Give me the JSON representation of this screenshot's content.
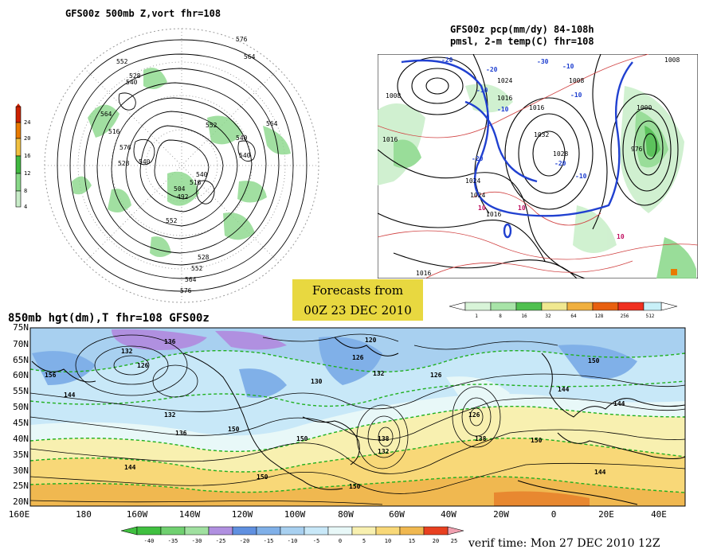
{
  "panel_500mb": {
    "title": "GFS00z  500mb Z,vort    fhr=108",
    "contour_labels": [
      "576",
      "564",
      "552",
      "540",
      "528",
      "516",
      "564",
      "552",
      "528",
      "540",
      "540",
      "504",
      "492",
      "516",
      "540",
      "552",
      "576",
      "564",
      "528",
      "564",
      "576",
      "540",
      "552"
    ],
    "colorbar_labels": [
      "24",
      "20",
      "16",
      "12",
      "8",
      "4"
    ],
    "colorbar_colors": [
      "#cc2200",
      "#e87a00",
      "#f0c040",
      "#40b840",
      "#88d888",
      "#c8ecc8"
    ]
  },
  "panel_pcp": {
    "title_line1": "GFS00z pcp(mm/dy) 84-108h",
    "title_line2": "pmsl, 2-m temp(C)  fhr=108",
    "isobar_labels": [
      "1008",
      "1016",
      "1024",
      "1032",
      "1028",
      "1024",
      "1016",
      "1008",
      "1016",
      "1024",
      "1000",
      "976",
      "1016",
      "1008",
      "1016"
    ],
    "temp_labels": [
      "-20",
      "-10",
      "-20",
      "-10",
      "-10",
      "-20",
      "-30",
      "-20",
      "-10",
      "10",
      "10",
      "10",
      "-10"
    ],
    "colorbar_labels": [
      "1",
      "8",
      "16",
      "32",
      "64",
      "128",
      "256",
      "512"
    ],
    "colorbar_colors": [
      "#d8f4d8",
      "#a8e4a8",
      "#50c050",
      "#f0e890",
      "#f0b040",
      "#e86010",
      "#f03020",
      "#c8f0f8"
    ]
  },
  "forecast_box": {
    "line1": "Forecasts from",
    "line2": "00Z 23 DEC 2010"
  },
  "panel_850mb": {
    "title": "850mb hgt(dm),T  fhr=108 GFS00z",
    "lat_labels": [
      "75N",
      "70N",
      "65N",
      "60N",
      "55N",
      "50N",
      "45N",
      "40N",
      "35N",
      "30N",
      "25N",
      "20N"
    ],
    "lon_labels": [
      "160E",
      "180",
      "160W",
      "140W",
      "120W",
      "100W",
      "80W",
      "60W",
      "40W",
      "20W",
      "0",
      "20E",
      "40E"
    ],
    "height_labels": [
      "132",
      "136",
      "126",
      "156",
      "144",
      "120",
      "126",
      "132",
      "130",
      "126",
      "144",
      "150",
      "132",
      "136",
      "150",
      "150",
      "138",
      "132",
      "126",
      "138",
      "150",
      "144",
      "144",
      "150",
      "144",
      "150"
    ],
    "temp_colorbar_labels": [
      "-40",
      "-35",
      "-30",
      "-25",
      "-20",
      "-15",
      "-10",
      "-5",
      "0",
      "5",
      "10",
      "15",
      "20",
      "25"
    ],
    "temp_colorbar_colors": [
      "#40c040",
      "#70d070",
      "#a0e0a0",
      "#b090e0",
      "#6090e0",
      "#80b0e8",
      "#a8d0f0",
      "#c8e8f8",
      "#e8f8f8",
      "#f8f0b0",
      "#f8d878",
      "#f0b850",
      "#e88830",
      "#e84020",
      "#f0a0b0"
    ]
  },
  "verif_time": "verif time: Mon 27 DEC 2010 12Z"
}
